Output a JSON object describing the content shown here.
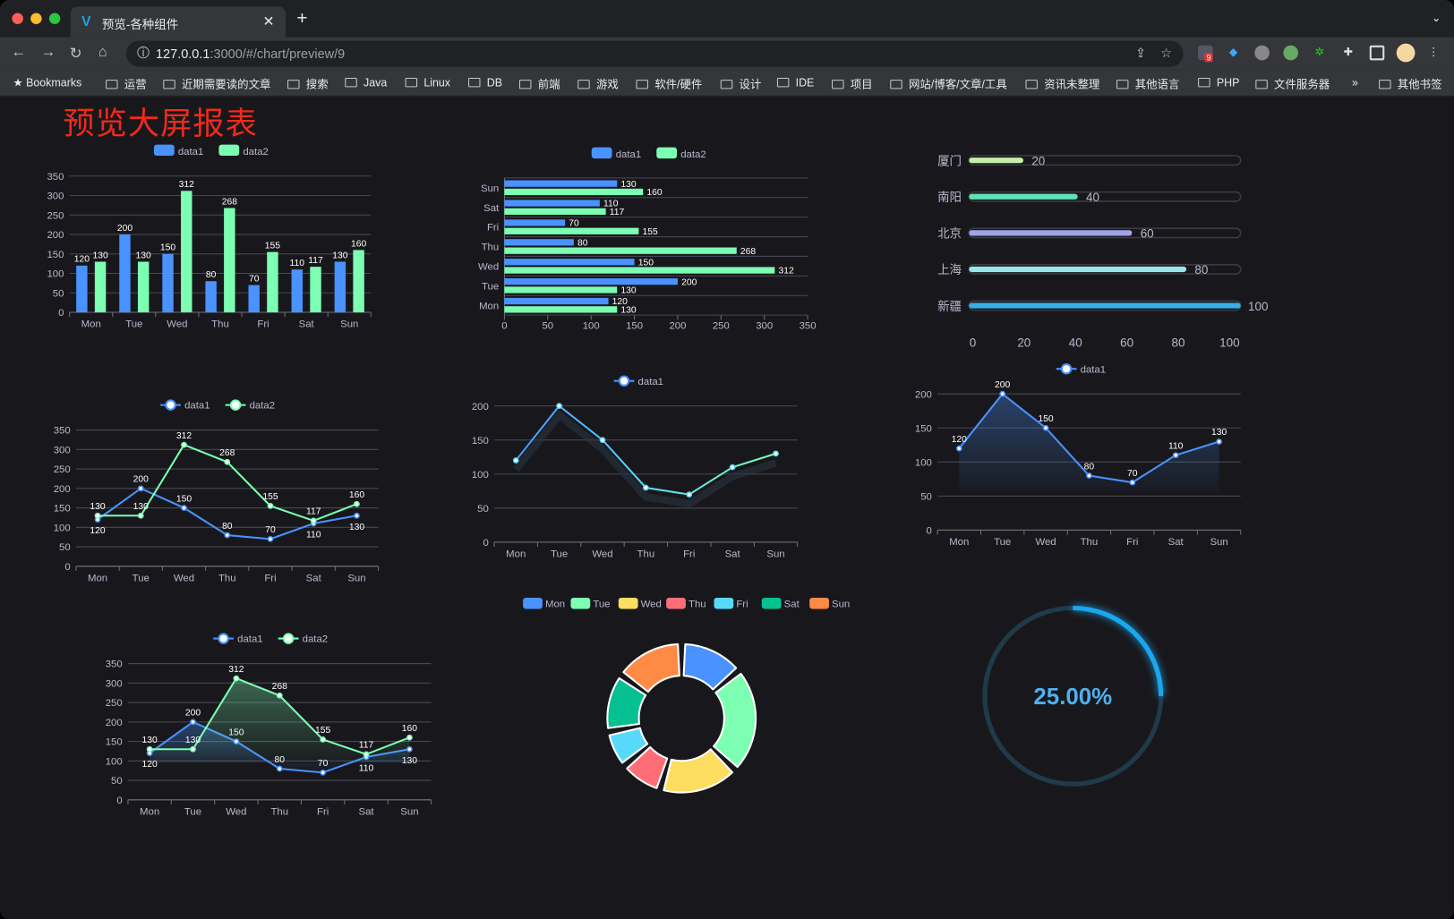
{
  "browser": {
    "tab_title": "预览-各种组件",
    "url_host": "127.0.0.1",
    "url_rest": ":3000/#/chart/preview/9",
    "extension_badge": "9",
    "bookmarks": [
      "Bookmarks",
      "运营",
      "近期需要读的文章",
      "搜索",
      "Java",
      "Linux",
      "DB",
      "前端",
      "游戏",
      "软件/硬件",
      "设计",
      "IDE",
      "项目",
      "网站/博客/文章/工具",
      "资讯未整理",
      "其他语言",
      "PHP",
      "文件服务器"
    ],
    "overflow": "»",
    "other_bookmarks": "其他书签"
  },
  "page": {
    "title": "预览大屏报表"
  },
  "colors": {
    "data1": "#4992ff",
    "data2": "#7cffb2",
    "axis_text": "#b9b8ce",
    "grid": "#484753",
    "title": "#f02a1a"
  },
  "chart_data": [
    {
      "type": "bar",
      "legend": [
        "data1",
        "data2"
      ],
      "categories": [
        "Mon",
        "Tue",
        "Wed",
        "Thu",
        "Fri",
        "Sat",
        "Sun"
      ],
      "series": [
        {
          "name": "data1",
          "values": [
            120,
            200,
            150,
            80,
            70,
            110,
            130
          ]
        },
        {
          "name": "data2",
          "values": [
            130,
            130,
            312,
            268,
            155,
            117,
            160
          ]
        }
      ],
      "yticks": [
        0,
        50,
        100,
        150,
        200,
        250,
        300,
        350
      ],
      "ylim": [
        0,
        350
      ],
      "grid": true
    },
    {
      "type": "bar",
      "orientation": "horizontal",
      "legend": [
        "data1",
        "data2"
      ],
      "categories": [
        "Mon",
        "Tue",
        "Wed",
        "Thu",
        "Fri",
        "Sat",
        "Sun"
      ],
      "series": [
        {
          "name": "data1",
          "values": [
            120,
            200,
            150,
            80,
            70,
            110,
            130
          ]
        },
        {
          "name": "data2",
          "values": [
            130,
            130,
            312,
            268,
            155,
            117,
            160
          ]
        }
      ],
      "xticks": [
        0,
        50,
        100,
        150,
        200,
        250,
        300,
        350
      ],
      "xlim": [
        0,
        350
      ],
      "grid": true
    },
    {
      "type": "bar",
      "orientation": "horizontal",
      "style": "progress",
      "categories": [
        "厦门",
        "南阳",
        "北京",
        "上海",
        "新疆"
      ],
      "values": [
        20,
        40,
        60,
        80,
        100
      ],
      "colors": [
        "#c6f0a6",
        "#5ee3b3",
        "#9fa5e8",
        "#98e6ee",
        "#38b0e6"
      ],
      "xticks": [
        0,
        20,
        40,
        60,
        80,
        100
      ],
      "xlim": [
        0,
        100
      ]
    },
    {
      "type": "line",
      "legend": [
        "data1",
        "data2"
      ],
      "categories": [
        "Mon",
        "Tue",
        "Wed",
        "Thu",
        "Fri",
        "Sat",
        "Sun"
      ],
      "series": [
        {
          "name": "data1",
          "values": [
            120,
            200,
            150,
            80,
            70,
            110,
            130
          ]
        },
        {
          "name": "data2",
          "values": [
            130,
            130,
            312,
            268,
            155,
            117,
            160
          ]
        }
      ],
      "yticks": [
        0,
        50,
        100,
        150,
        200,
        250,
        300,
        350
      ],
      "ylim": [
        0,
        350
      ],
      "labels": true
    },
    {
      "type": "line",
      "legend": [
        "data1"
      ],
      "categories": [
        "Mon",
        "Tue",
        "Wed",
        "Thu",
        "Fri",
        "Sat",
        "Sun"
      ],
      "series": [
        {
          "name": "data1",
          "values": [
            120,
            200,
            150,
            80,
            70,
            110,
            130
          ]
        }
      ],
      "yticks": [
        0,
        50,
        100,
        150,
        200
      ],
      "ylim": [
        0,
        200
      ],
      "labels": false,
      "gradient_stroke": true
    },
    {
      "type": "area",
      "legend": [
        "data1"
      ],
      "categories": [
        "Mon",
        "Tue",
        "Wed",
        "Thu",
        "Fri",
        "Sat",
        "Sun"
      ],
      "series": [
        {
          "name": "data1",
          "values": [
            120,
            200,
            150,
            80,
            70,
            110,
            130
          ]
        }
      ],
      "yticks": [
        0,
        50,
        100,
        150,
        200
      ],
      "ylim": [
        0,
        200
      ],
      "labels": true
    },
    {
      "type": "area",
      "legend": [
        "data1",
        "data2"
      ],
      "categories": [
        "Mon",
        "Tue",
        "Wed",
        "Thu",
        "Fri",
        "Sat",
        "Sun"
      ],
      "series": [
        {
          "name": "data1",
          "values": [
            120,
            200,
            150,
            80,
            70,
            110,
            130
          ]
        },
        {
          "name": "data2",
          "values": [
            130,
            130,
            312,
            268,
            155,
            117,
            160
          ]
        }
      ],
      "yticks": [
        0,
        50,
        100,
        150,
        200,
        250,
        300,
        350
      ],
      "ylim": [
        0,
        350
      ],
      "labels": true
    },
    {
      "type": "pie",
      "style": "donut",
      "categories": [
        "Mon",
        "Tue",
        "Wed",
        "Thu",
        "Fri",
        "Sat",
        "Sun"
      ],
      "values": [
        120,
        200,
        150,
        80,
        70,
        110,
        130
      ],
      "colors": [
        "#4992ff",
        "#7cffb2",
        "#fddd60",
        "#ff6e76",
        "#58d9f9",
        "#05c091",
        "#ff8a45"
      ],
      "legend": "top"
    },
    {
      "type": "gauge",
      "value": 0.25,
      "label": "25.00%",
      "color": "#1aa7ee",
      "track": "#1f3b4a"
    }
  ]
}
